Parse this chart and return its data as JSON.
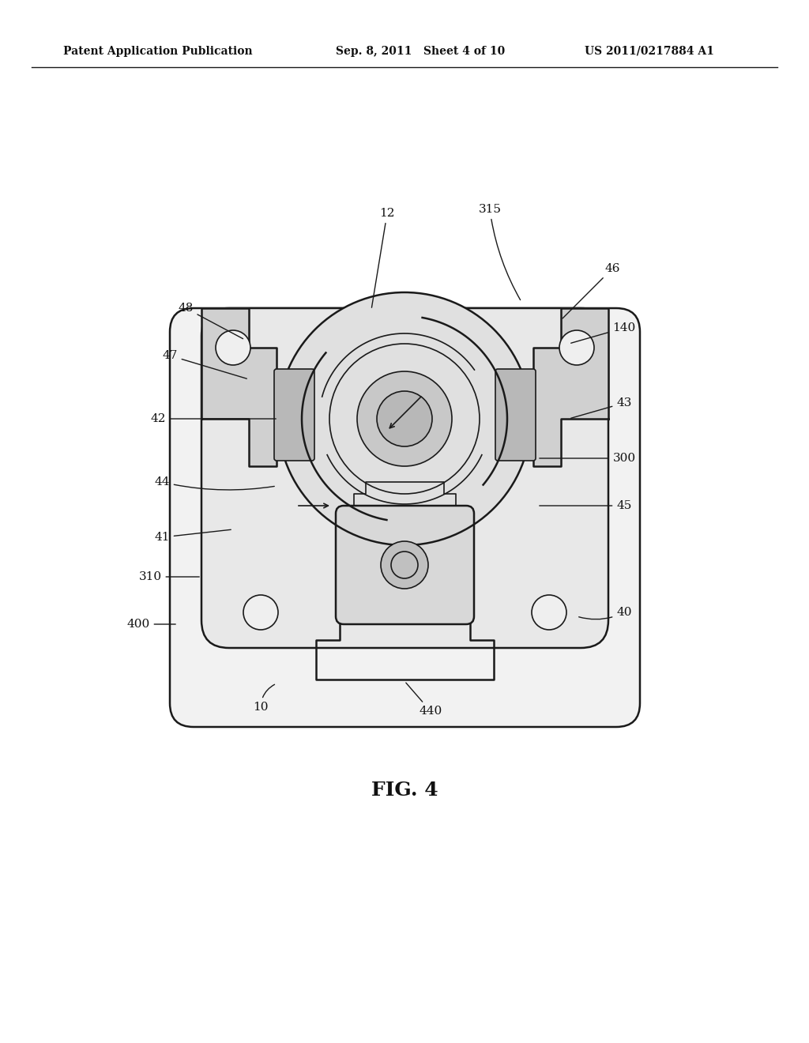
{
  "bg_color": "#ffffff",
  "line_color": "#1a1a1a",
  "header_left": "Patent Application Publication",
  "header_mid": "Sep. 8, 2011   Sheet 4 of 10",
  "header_right": "US 2011/0217884 A1",
  "fig_label": "FIG. 4"
}
